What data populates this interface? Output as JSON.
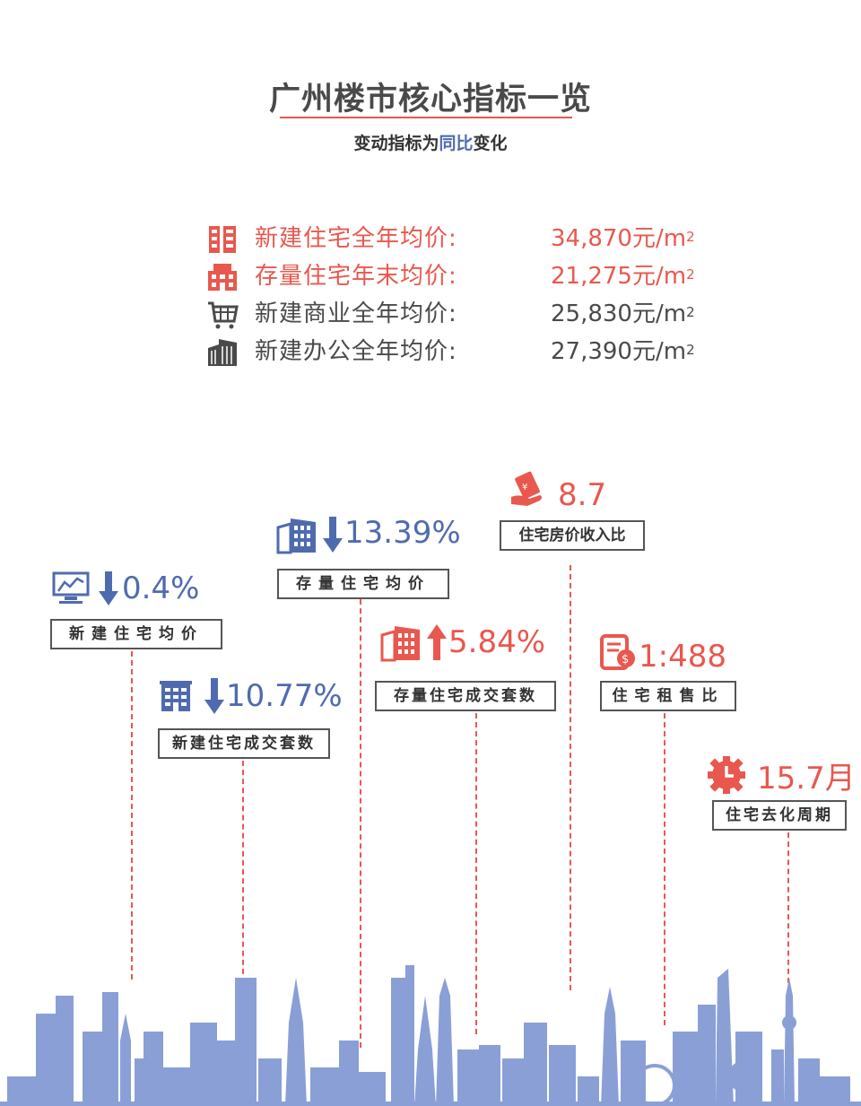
{
  "header": {
    "title": "广州楼市核心指标一览",
    "subtitle_prefix": "变动指标为",
    "subtitle_highlight": "同比",
    "subtitle_suffix": "变化"
  },
  "prices": [
    {
      "label": "新建住宅全年均价:",
      "value": "34,870元/m",
      "sup": "2",
      "icon": "building-icon"
    },
    {
      "label": "存量住宅年末均价:",
      "value": "21,275元/m",
      "sup": "2",
      "icon": "apartment-icon"
    },
    {
      "label": "新建商业全年均价:",
      "value": "25,830元/m",
      "sup": "2",
      "icon": "shopping-cart-icon"
    },
    {
      "label": "新建办公全年均价:",
      "value": "27,390元/m",
      "sup": "2",
      "icon": "office-tower-icon"
    }
  ],
  "metrics": [
    {
      "label": "新建住宅均价",
      "value": "0.4%",
      "direction": "down",
      "icon": "monitor-chart-icon"
    },
    {
      "label": "新建住宅成交套数",
      "value": "10.77%",
      "direction": "down",
      "icon": "building-icon"
    },
    {
      "label": "存量住宅均价",
      "value": "13.39%",
      "direction": "down",
      "icon": "buildings-icon"
    },
    {
      "label": "存量住宅成交套数",
      "value": "5.84%",
      "direction": "up",
      "icon": "buildings-icon"
    },
    {
      "label": "住宅房价收入比",
      "value": "8.7",
      "icon": "money-hand-icon"
    },
    {
      "label": "住宅租售比",
      "value": "1:488",
      "icon": "contract-icon"
    },
    {
      "label": "住宅去化周期",
      "value": "15.7月",
      "icon": "clock-gear-icon"
    }
  ],
  "colors": {
    "accent_red": "#e8584e",
    "accent_blue": "#4f6bb0",
    "skyline": "#8a9fd6",
    "text": "#4a4a4a"
  }
}
